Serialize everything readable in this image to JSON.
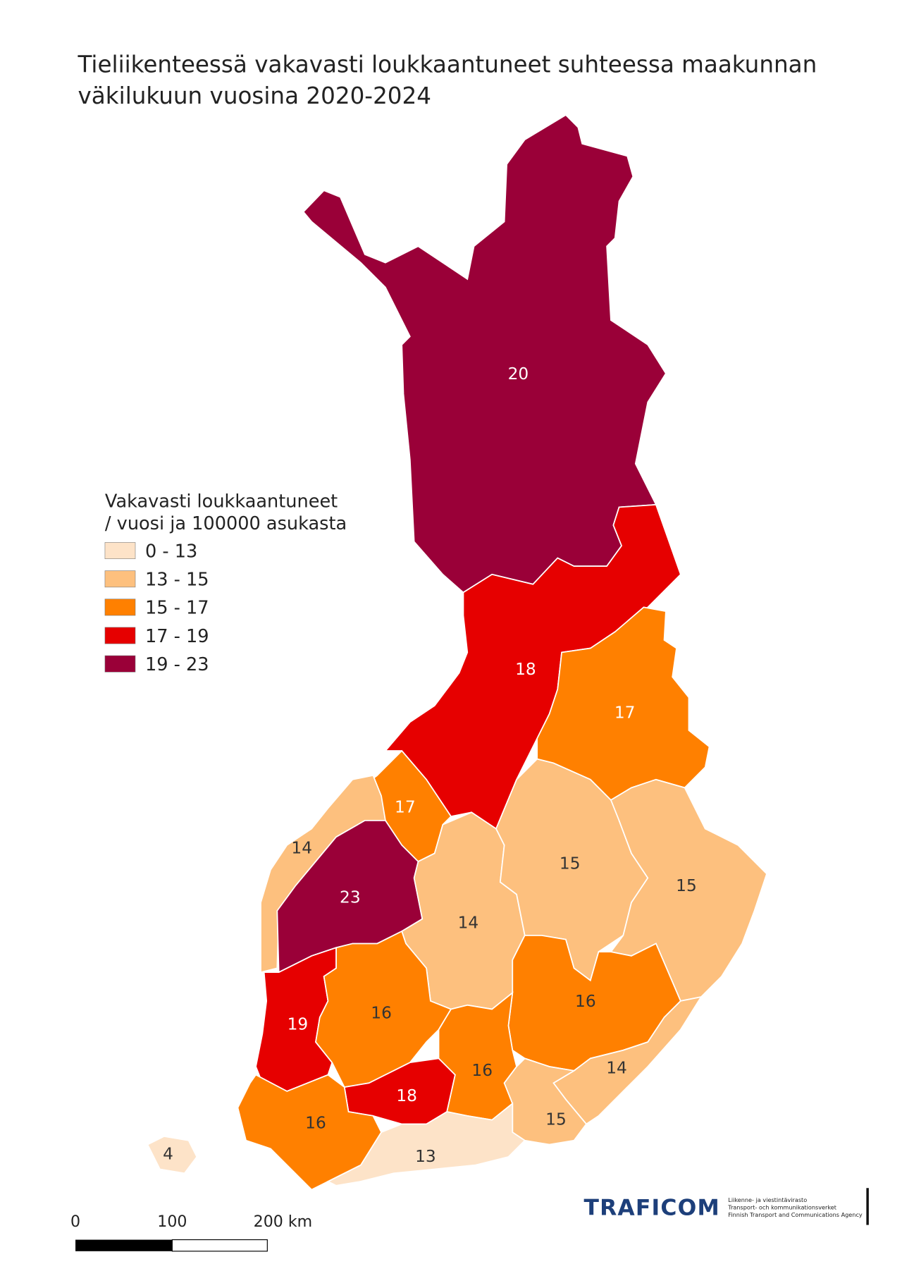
{
  "title": [
    "Tieliikenteessä vakavasti loukkaantuneet suhteessa maakunnan",
    "väkilukuun vuosina 2020-2024"
  ],
  "legend": {
    "title": [
      "Vakavasti loukkaantuneet",
      "/ vuosi ja 100000 asukasta"
    ],
    "classes": [
      {
        "label": "0 - 13",
        "color": "#fde3c8"
      },
      {
        "label": "13 - 15",
        "color": "#fdc07e"
      },
      {
        "label": "15 - 17",
        "color": "#ff8000"
      },
      {
        "label": "17 - 19",
        "color": "#e60000"
      },
      {
        "label": "19 - 23",
        "color": "#9a0038"
      }
    ]
  },
  "regions": [
    {
      "value": 20,
      "color": "#9a0038",
      "text_color": "#ffffff"
    },
    {
      "value": 18,
      "color": "#e60000",
      "text_color": "#ffffff"
    },
    {
      "value": 17,
      "color": "#ff8000",
      "text_color": "#ffffff"
    },
    {
      "value": 17,
      "color": "#ff8000",
      "text_color": "#ffffff"
    },
    {
      "value": 14,
      "color": "#fdc07e",
      "text_color": "#333333"
    },
    {
      "value": 23,
      "color": "#9a0038",
      "text_color": "#ffffff"
    },
    {
      "value": 14,
      "color": "#fdc07e",
      "text_color": "#333333"
    },
    {
      "value": 15,
      "color": "#fdc07e",
      "text_color": "#333333"
    },
    {
      "value": 15,
      "color": "#fdc07e",
      "text_color": "#333333"
    },
    {
      "value": 16,
      "color": "#ff8000",
      "text_color": "#333333"
    },
    {
      "value": 19,
      "color": "#e60000",
      "text_color": "#ffffff"
    },
    {
      "value": 16,
      "color": "#ff8000",
      "text_color": "#333333"
    },
    {
      "value": 16,
      "color": "#ff8000",
      "text_color": "#333333"
    },
    {
      "value": 18,
      "color": "#e60000",
      "text_color": "#ffffff"
    },
    {
      "value": 16,
      "color": "#ff8000",
      "text_color": "#333333"
    },
    {
      "value": 14,
      "color": "#fdc07e",
      "text_color": "#333333"
    },
    {
      "value": 15,
      "color": "#fdc07e",
      "text_color": "#333333"
    },
    {
      "value": 13,
      "color": "#fde3c8",
      "text_color": "#333333"
    },
    {
      "value": 4,
      "color": "#fde3c8",
      "text_color": "#333333"
    }
  ],
  "scale_bar": [
    "0",
    "100",
    "200 km"
  ],
  "logo": {
    "name": "TRAFICOM",
    "lines": [
      "Liikenne- ja viestintävirasto",
      "Transport- och kommunikationsverket",
      "Finnish Transport and Communications Agency"
    ]
  }
}
